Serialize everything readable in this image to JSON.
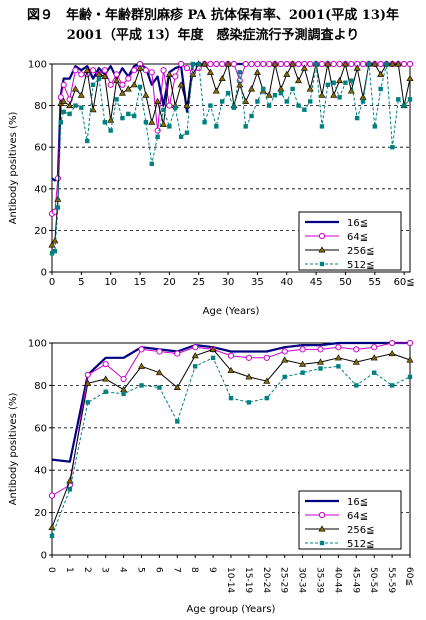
{
  "header": {
    "line1": "図９　年齢・年齢群別麻疹 PA 抗体保有率、2001(平成 13)年",
    "line2": "2001（平成 13）年度　感染症流行予測調査より"
  },
  "colors": {
    "s16": "#000080",
    "s64": "#cc00cc",
    "s256": "#000000",
    "s512": "#008080"
  },
  "chart_data": [
    {
      "type": "line",
      "title": "",
      "xlabel": "Age (Years)",
      "ylabel": "Antibody positives (%)",
      "ylim": [
        0,
        100
      ],
      "xlim": [
        0,
        61
      ],
      "yticks": [
        "0",
        "20",
        "40",
        "60",
        "80",
        "100"
      ],
      "xticks": [
        "0",
        "5",
        "10",
        "15",
        "20",
        "25",
        "30",
        "35",
        "40",
        "45",
        "50",
        "55",
        "60≦"
      ],
      "grid": "horizontal dashed",
      "legend": "lower right",
      "x": [
        0,
        0.5,
        1,
        1.5,
        2,
        3,
        4,
        5,
        6,
        7,
        8,
        9,
        10,
        11,
        12,
        13,
        14,
        15,
        16,
        17,
        18,
        19,
        20,
        21,
        22,
        23,
        24,
        25,
        26,
        27,
        28,
        29,
        30,
        31,
        32,
        33,
        34,
        35,
        36,
        37,
        38,
        39,
        40,
        41,
        42,
        43,
        44,
        45,
        46,
        47,
        48,
        49,
        50,
        51,
        52,
        53,
        54,
        55,
        56,
        57,
        58,
        59,
        60,
        61
      ],
      "series": [
        {
          "name": "16≦",
          "values": [
            45,
            44,
            45,
            85,
            93,
            93,
            99,
            97,
            99,
            93,
            98,
            95,
            99,
            93,
            98,
            94,
            99,
            100,
            98,
            90,
            94,
            80,
            96,
            98,
            99,
            77,
            100,
            100,
            100,
            100,
            100,
            100,
            100,
            100,
            100,
            100,
            100,
            100,
            100,
            100,
            100,
            100,
            100,
            100,
            100,
            100,
            100,
            100,
            100,
            100,
            100,
            100,
            100,
            100,
            100,
            100,
            100,
            100,
            100,
            100,
            100,
            100,
            100,
            100
          ]
        },
        {
          "name": "64≦",
          "values": [
            28,
            29,
            45,
            84,
            90,
            83,
            97,
            95,
            95,
            97,
            95,
            97,
            90,
            95,
            90,
            93,
            97,
            100,
            97,
            96,
            68,
            97,
            80,
            94,
            100,
            98,
            96,
            98,
            100,
            100,
            100,
            100,
            100,
            100,
            92,
            100,
            100,
            100,
            100,
            100,
            100,
            100,
            100,
            100,
            100,
            100,
            100,
            100,
            100,
            100,
            100,
            100,
            100,
            100,
            100,
            100,
            100,
            100,
            100,
            100,
            100,
            100,
            100,
            100
          ]
        },
        {
          "name": "256≦",
          "values": [
            13,
            15,
            35,
            81,
            82,
            80,
            88,
            85,
            97,
            78,
            95,
            94,
            73,
            92,
            86,
            88,
            90,
            98,
            85,
            72,
            82,
            71,
            95,
            80,
            90,
            80,
            95,
            100,
            100,
            96,
            87,
            93,
            100,
            80,
            90,
            82,
            88,
            96,
            87,
            85,
            100,
            88,
            95,
            100,
            92,
            98,
            88,
            100,
            85,
            100,
            85,
            92,
            100,
            87,
            98,
            84,
            100,
            100,
            95,
            100,
            100,
            100,
            80,
            93
          ]
        },
        {
          "name": "512≦",
          "values": [
            9,
            10,
            31,
            72,
            77,
            76,
            80,
            79,
            63,
            90,
            93,
            72,
            68,
            83,
            74,
            76,
            75,
            89,
            72,
            52,
            65,
            78,
            70,
            79,
            65,
            67,
            100,
            100,
            72,
            80,
            70,
            82,
            86,
            79,
            96,
            70,
            75,
            82,
            88,
            80,
            85,
            86,
            82,
            88,
            80,
            78,
            82,
            100,
            70,
            90,
            91,
            84,
            91,
            92,
            74,
            82,
            100,
            70,
            88,
            100,
            60,
            83,
            80,
            83
          ]
        }
      ]
    },
    {
      "type": "line",
      "title": "",
      "xlabel": "Age group (Years)",
      "ylabel": "Antibody positives (%)",
      "ylim": [
        0,
        100
      ],
      "yticks": [
        "0",
        "20",
        "40",
        "60",
        "80",
        "100"
      ],
      "grid": "horizontal dashed",
      "legend": "lower right",
      "categories": [
        "0",
        "1",
        "2",
        "3",
        "4",
        "5",
        "6",
        "7",
        "8",
        "9",
        "10-14",
        "15-19",
        "20-24",
        "25-29",
        "30-34",
        "35-39",
        "40-44",
        "45-49",
        "50-54",
        "55-59",
        "60≦"
      ],
      "series": [
        {
          "name": "16≦",
          "values": [
            45,
            44,
            85,
            93,
            93,
            98,
            97,
            96,
            99,
            98,
            96,
            96,
            96,
            98,
            99,
            99,
            100,
            100,
            100,
            100,
            100
          ]
        },
        {
          "name": "64≦",
          "values": [
            28,
            33,
            85,
            90,
            83,
            97,
            96,
            95,
            98,
            97,
            94,
            93,
            93,
            96,
            97,
            97,
            98,
            97,
            98,
            100,
            100
          ]
        },
        {
          "name": "256≦",
          "values": [
            13,
            35,
            81,
            83,
            78,
            89,
            86,
            79,
            94,
            97,
            87,
            84,
            82,
            92,
            90,
            91,
            93,
            91,
            93,
            95,
            92
          ]
        },
        {
          "name": "512≦",
          "values": [
            9,
            31,
            72,
            77,
            76,
            80,
            79,
            63,
            89,
            93,
            74,
            72,
            74,
            84,
            86,
            88,
            89,
            80,
            86,
            80,
            84
          ]
        }
      ]
    }
  ]
}
